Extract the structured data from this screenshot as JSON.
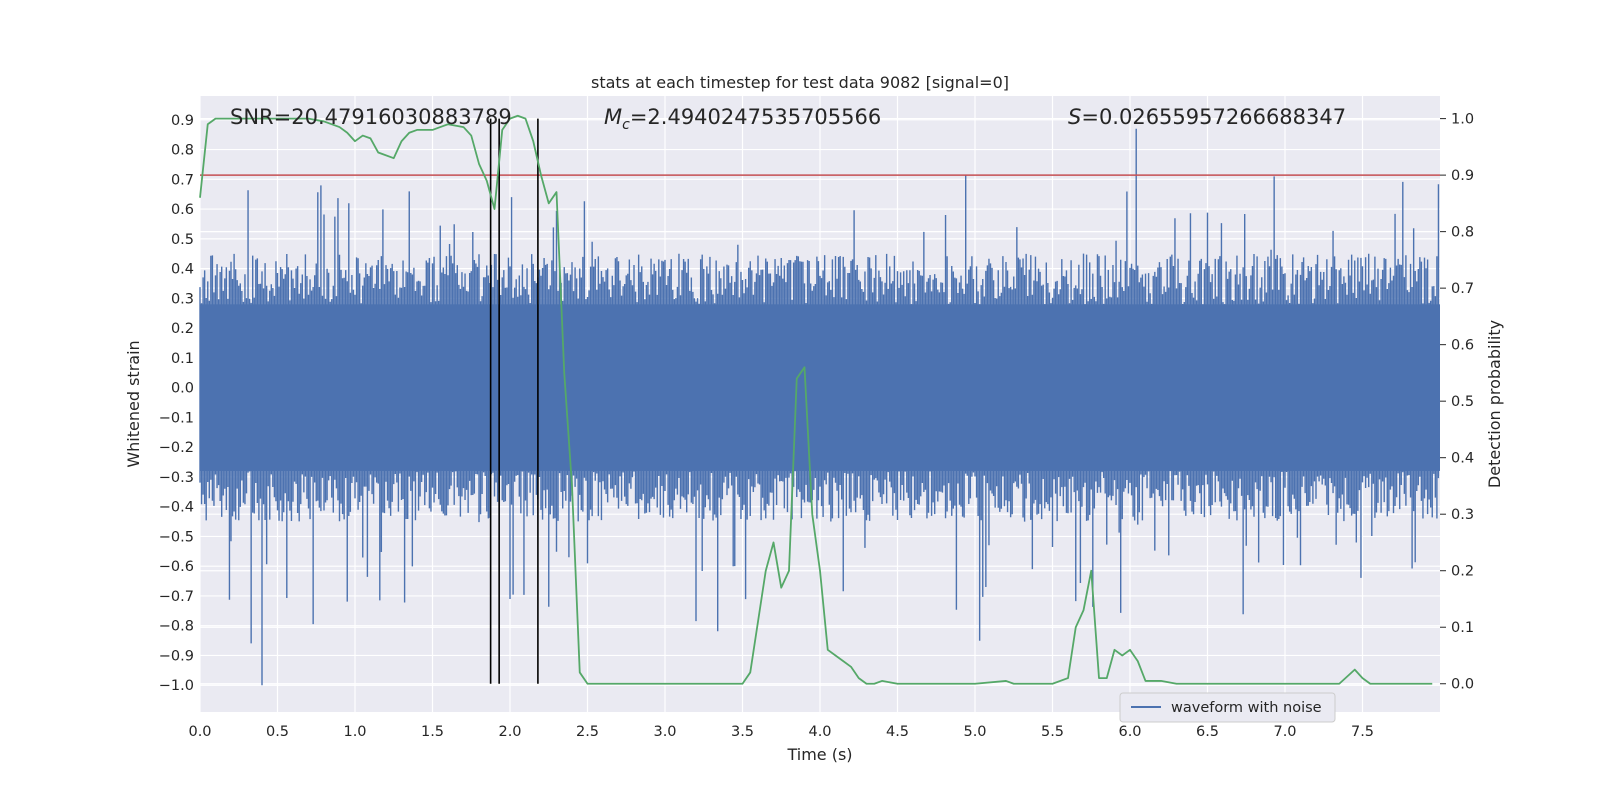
{
  "chart_data": {
    "type": "line",
    "title": "stats at each timestep for test data 9082 [signal=0]",
    "xlabel": "Time (s)",
    "ylabel": "Whitened strain",
    "y2label": "Detection probability",
    "xlim": [
      0,
      8
    ],
    "ylim": [
      -1.09,
      0.98
    ],
    "y2lim": [
      -0.05,
      1.04
    ],
    "xticks": [
      0.0,
      0.5,
      1.0,
      1.5,
      2.0,
      2.5,
      3.0,
      3.5,
      4.0,
      4.5,
      5.0,
      5.5,
      6.0,
      6.5,
      7.0,
      7.5
    ],
    "xtick_labels": [
      "0.0",
      "0.5",
      "1.0",
      "1.5",
      "2.0",
      "2.5",
      "3.0",
      "3.5",
      "4.0",
      "4.5",
      "5.0",
      "5.5",
      "6.0",
      "6.5",
      "7.0",
      "7.5"
    ],
    "yticks": [
      0.9,
      0.8,
      0.7,
      0.6,
      0.5,
      0.4,
      0.3,
      0.2,
      0.1,
      0.0,
      -0.1,
      -0.2,
      -0.3,
      -0.4,
      -0.5,
      -0.6,
      -0.7,
      -0.8,
      -0.9,
      -1.0
    ],
    "ytick_labels": [
      "0.9",
      "0.8",
      "0.7",
      "0.6",
      "0.5",
      "0.4",
      "0.3",
      "0.2",
      "0.1",
      "0.0",
      "−0.1",
      "−0.2",
      "−0.3",
      "−0.4",
      "−0.5",
      "−0.6",
      "−0.7",
      "−0.8",
      "−0.9",
      "−1.0"
    ],
    "y2ticks": [
      1.0,
      0.9,
      0.8,
      0.7,
      0.6,
      0.5,
      0.4,
      0.3,
      0.2,
      0.1,
      0.0
    ],
    "y2tick_labels": [
      "1.0",
      "0.9",
      "0.8",
      "0.7",
      "0.6",
      "0.5",
      "0.4",
      "0.3",
      "0.2",
      "0.1",
      "0.0"
    ],
    "annotations": {
      "snr": "SNR=20.47916030883789",
      "mc_symbol": "M",
      "mc_sub": "c",
      "mc_value": "=2.4940247535705566",
      "s_symbol": "S",
      "s_value": "=0.02655957266688347"
    },
    "legend": {
      "entries": [
        "waveform with noise"
      ],
      "position": "lower-right"
    },
    "threshold_line": {
      "y2": 0.9,
      "color": "#c44e52"
    },
    "vertical_markers_x": [
      1.875,
      1.93,
      2.18
    ],
    "waveform": {
      "name": "waveform with noise",
      "color": "#4c72b0",
      "x_range": [
        0,
        8
      ],
      "samples": 800,
      "core_amplitude": 0.28,
      "typical_peak": 0.45,
      "max_peak": 0.87,
      "min_peak": -1.0
    },
    "probability_series": {
      "name": "detection probability",
      "color": "#55a868",
      "x": [
        0.0,
        0.05,
        0.1,
        0.2,
        0.4,
        0.6,
        0.7,
        0.8,
        0.9,
        0.95,
        1.0,
        1.05,
        1.1,
        1.15,
        1.25,
        1.3,
        1.35,
        1.4,
        1.5,
        1.55,
        1.6,
        1.7,
        1.75,
        1.8,
        1.85,
        1.9,
        1.95,
        2.0,
        2.05,
        2.1,
        2.15,
        2.2,
        2.25,
        2.3,
        2.35,
        2.4,
        2.45,
        2.5,
        2.6,
        2.8,
        3.0,
        3.2,
        3.4,
        3.5,
        3.55,
        3.6,
        3.65,
        3.7,
        3.75,
        3.8,
        3.85,
        3.9,
        3.95,
        4.0,
        4.05,
        4.1,
        4.15,
        4.2,
        4.25,
        4.3,
        4.35,
        4.4,
        4.5,
        4.6,
        4.8,
        5.0,
        5.2,
        5.25,
        5.3,
        5.5,
        5.6,
        5.65,
        5.7,
        5.75,
        5.8,
        5.85,
        5.9,
        5.95,
        6.0,
        6.05,
        6.1,
        6.2,
        6.3,
        6.5,
        6.8,
        7.0,
        7.2,
        7.35,
        7.45,
        7.5,
        7.55,
        7.6,
        7.7,
        7.8,
        7.95
      ],
      "values": [
        0.86,
        0.99,
        1.0,
        1.0,
        1.0,
        1.0,
        1.0,
        0.995,
        0.985,
        0.975,
        0.96,
        0.97,
        0.965,
        0.94,
        0.93,
        0.96,
        0.975,
        0.98,
        0.98,
        0.985,
        0.99,
        0.985,
        0.97,
        0.92,
        0.89,
        0.84,
        0.98,
        1.0,
        1.005,
        1.0,
        0.96,
        0.9,
        0.85,
        0.87,
        0.55,
        0.35,
        0.02,
        0.0,
        0.0,
        0.0,
        0.0,
        0.0,
        0.0,
        0.0,
        0.02,
        0.11,
        0.2,
        0.25,
        0.17,
        0.2,
        0.54,
        0.56,
        0.3,
        0.2,
        0.06,
        0.05,
        0.04,
        0.03,
        0.01,
        0.0,
        0.0,
        0.005,
        0.0,
        0.0,
        0.0,
        0.0,
        0.005,
        0.0,
        0.0,
        0.0,
        0.01,
        0.1,
        0.13,
        0.2,
        0.01,
        0.01,
        0.06,
        0.05,
        0.06,
        0.04,
        0.005,
        0.005,
        0.0,
        0.0,
        0.0,
        0.0,
        0.0,
        0.0,
        0.025,
        0.01,
        0.0,
        0.0,
        0.0,
        0.0,
        0.0
      ]
    }
  }
}
